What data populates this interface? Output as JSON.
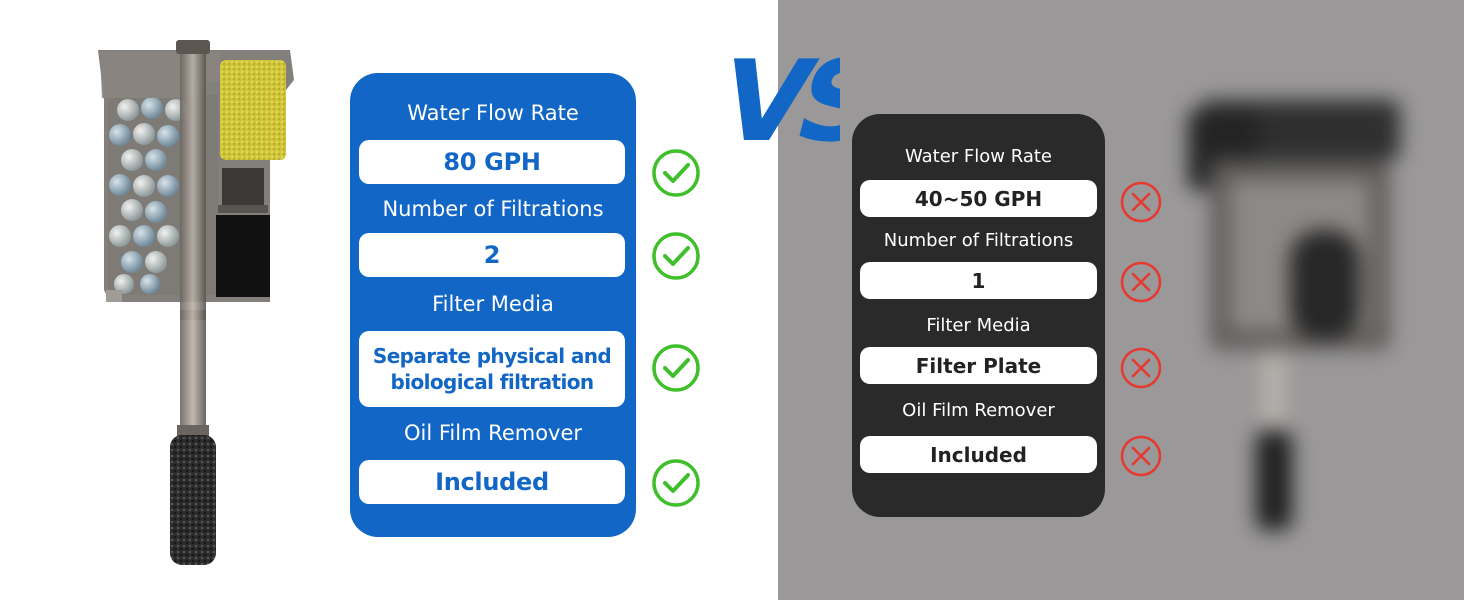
{
  "our_product": {
    "specs": [
      {
        "label": "Water Flow Rate",
        "value": "80 GPH"
      },
      {
        "label": "Number of Filtrations",
        "value": "2"
      },
      {
        "label": "Filter Media",
        "value": "Separate physical and biological filtration"
      },
      {
        "label": "Oil Film Remover",
        "value": "Included"
      }
    ],
    "mark": "check-icon",
    "panel_color": "#1266c5",
    "mark_color": "#3fbf2a"
  },
  "vs_text": "VS",
  "vs_color": "#1266c5",
  "other_product": {
    "specs": [
      {
        "label": "Water Flow Rate",
        "value": "40~50 GPH"
      },
      {
        "label": "Number of Filtrations",
        "value": "1"
      },
      {
        "label": "Filter Media",
        "value": "Filter Plate"
      },
      {
        "label": "Oil Film Remover",
        "value": "Included"
      }
    ],
    "mark": "cross-icon",
    "panel_color": "#2b2a2a",
    "mark_color": "#e8372d"
  }
}
